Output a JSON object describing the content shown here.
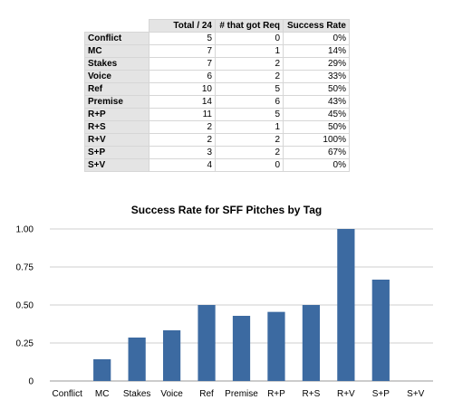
{
  "table": {
    "headers": [
      "Total / 24",
      "# that  got Req",
      "Success Rate"
    ],
    "rows": [
      {
        "tag": "Conflict",
        "total": "5",
        "req": "0",
        "rate": "0%"
      },
      {
        "tag": "MC",
        "total": "7",
        "req": "1",
        "rate": "14%"
      },
      {
        "tag": "Stakes",
        "total": "7",
        "req": "2",
        "rate": "29%"
      },
      {
        "tag": "Voice",
        "total": "6",
        "req": "2",
        "rate": "33%"
      },
      {
        "tag": "Ref",
        "total": "10",
        "req": "5",
        "rate": "50%"
      },
      {
        "tag": "Premise",
        "total": "14",
        "req": "6",
        "rate": "43%"
      },
      {
        "tag": "R+P",
        "total": "11",
        "req": "5",
        "rate": "45%"
      },
      {
        "tag": "R+S",
        "total": "2",
        "req": "1",
        "rate": "50%"
      },
      {
        "tag": "R+V",
        "total": "2",
        "req": "2",
        "rate": "100%"
      },
      {
        "tag": "S+P",
        "total": "3",
        "req": "2",
        "rate": "67%"
      },
      {
        "tag": "S+V",
        "total": "4",
        "req": "0",
        "rate": "0%"
      }
    ]
  },
  "chart_data": {
    "type": "bar",
    "title": "Success Rate for SFF Pitches by Tag",
    "categories": [
      "Conflict",
      "MC",
      "Stakes",
      "Voice",
      "Ref",
      "Premise",
      "R+P",
      "R+S",
      "R+V",
      "S+P",
      "S+V"
    ],
    "values": [
      0,
      0.1429,
      0.2857,
      0.3333,
      0.5,
      0.4286,
      0.4545,
      0.5,
      1.0,
      0.6667,
      0
    ],
    "ylim": [
      0,
      1.0
    ],
    "yticks": [
      "0",
      "0.25",
      "0.50",
      "0.75",
      "1.00"
    ],
    "ytick_values": [
      0,
      0.25,
      0.5,
      0.75,
      1.0
    ],
    "xlabel": "",
    "ylabel": "",
    "grid": true,
    "bar_color": "#3c6aa1",
    "grid_color": "#cfcfcf"
  }
}
